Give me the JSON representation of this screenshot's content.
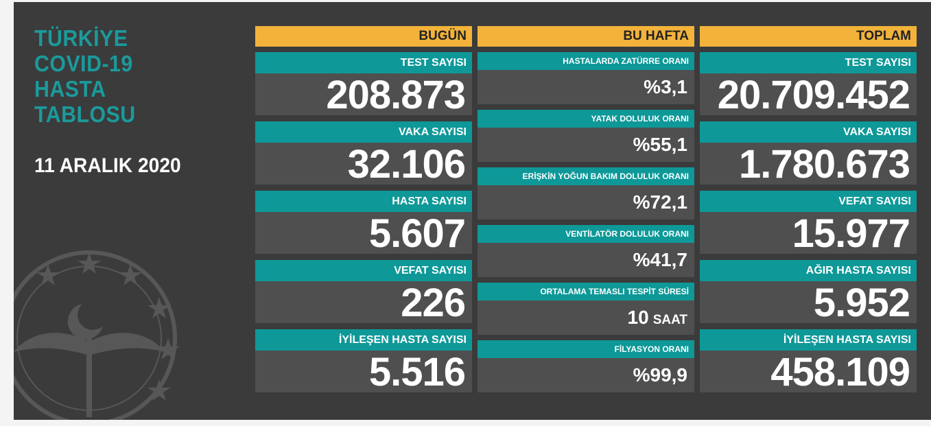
{
  "title": "TÜRKİYE\nCOVID-19\nHASTA\nTABLOSU",
  "date": "11 ARALIK 2020",
  "columns": {
    "today": {
      "header": "BUGÜN",
      "items": [
        {
          "label": "TEST SAYISI",
          "value": "208.873"
        },
        {
          "label": "VAKA SAYISI",
          "value": "32.106"
        },
        {
          "label": "HASTA SAYISI",
          "value": "5.607"
        },
        {
          "label": "VEFAT SAYISI",
          "value": "226"
        },
        {
          "label": "İYİLEŞEN HASTA SAYISI",
          "value": "5.516"
        }
      ]
    },
    "week": {
      "header": "BU HAFTA",
      "items": [
        {
          "label": "HASTALARDA ZATÜRRE ORANI",
          "value": "%3,1"
        },
        {
          "label": "YATAK DOLULUK ORANI",
          "value": "%55,1"
        },
        {
          "label": "ERİŞKİN YOĞUN BAKIM DOLULUK ORANI",
          "value": "%72,1"
        },
        {
          "label": "VENTİLATÖR DOLULUK ORANI",
          "value": "%41,7"
        },
        {
          "label": "ORTALAMA TEMASLI TESPİT SÜRESİ",
          "value": "10",
          "unit": "SAAT"
        },
        {
          "label": "FİLYASYON ORANI",
          "value": "%99,9"
        }
      ]
    },
    "total": {
      "header": "TOPLAM",
      "items": [
        {
          "label": "TEST SAYISI",
          "value": "20.709.452"
        },
        {
          "label": "VAKA SAYISI",
          "value": "1.780.673"
        },
        {
          "label": "VEFAT SAYISI",
          "value": "15.977"
        },
        {
          "label": "AĞIR HASTA SAYISI",
          "value": "5.952"
        },
        {
          "label": "İYİLEŞEN HASTA SAYISI",
          "value": "458.109"
        }
      ]
    }
  },
  "colors": {
    "background": "#3b3b3c",
    "header": "#f3b33a",
    "label": "#0e9898",
    "value_panel": "#4f4f50",
    "title": "#1b9a9b"
  }
}
